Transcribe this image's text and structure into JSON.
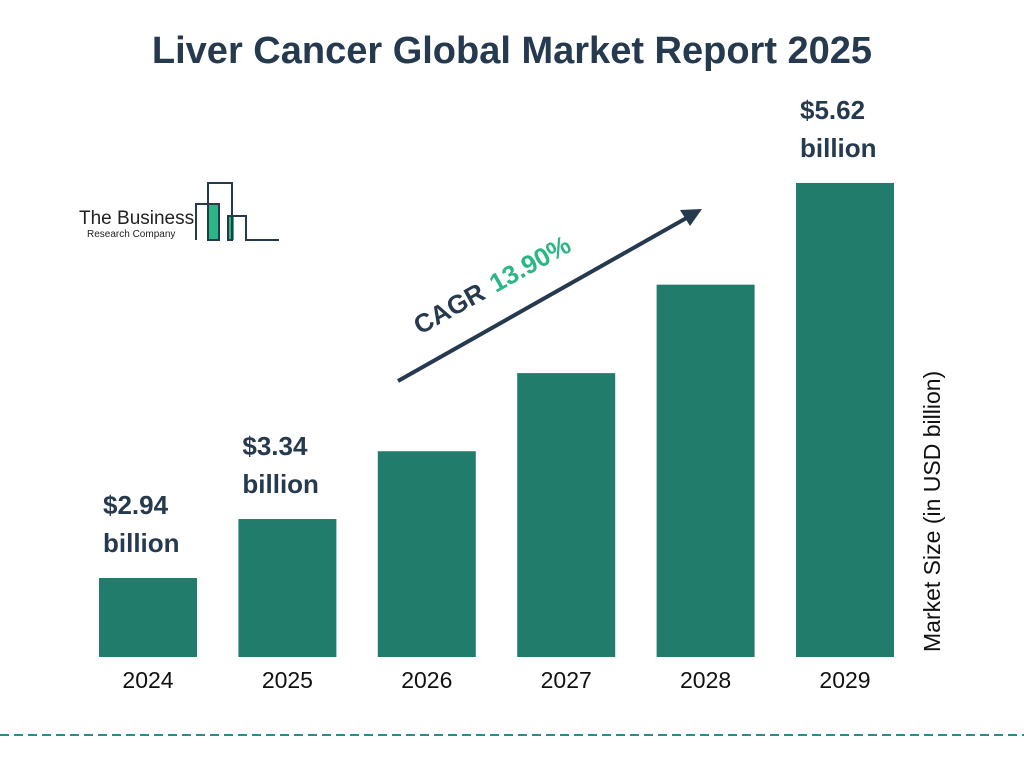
{
  "title": "Liver Cancer Global Market Report 2025",
  "logo": {
    "line1": "The Business",
    "line2": "Research Company"
  },
  "cagr": {
    "label": "CAGR",
    "value": "13.90%",
    "color": "#2bb783"
  },
  "dash_color": "#2b8c8c",
  "chart_data": {
    "type": "bar",
    "title": "Liver Cancer Global Market Report 2025",
    "categories": [
      "2024",
      "2025",
      "2026",
      "2027",
      "2028",
      "2029"
    ],
    "values": [
      2.94,
      3.34,
      3.8,
      4.33,
      4.93,
      5.62
    ],
    "data_labels": [
      [
        "$2.94",
        "billion"
      ],
      [
        "$3.34",
        "billion"
      ],
      null,
      null,
      null,
      [
        "$5.62",
        "billion"
      ]
    ],
    "xlabel": "",
    "ylabel": "Market Size (in USD billion)",
    "bar_color": "#217c6c",
    "grid": false,
    "legend": "none"
  }
}
